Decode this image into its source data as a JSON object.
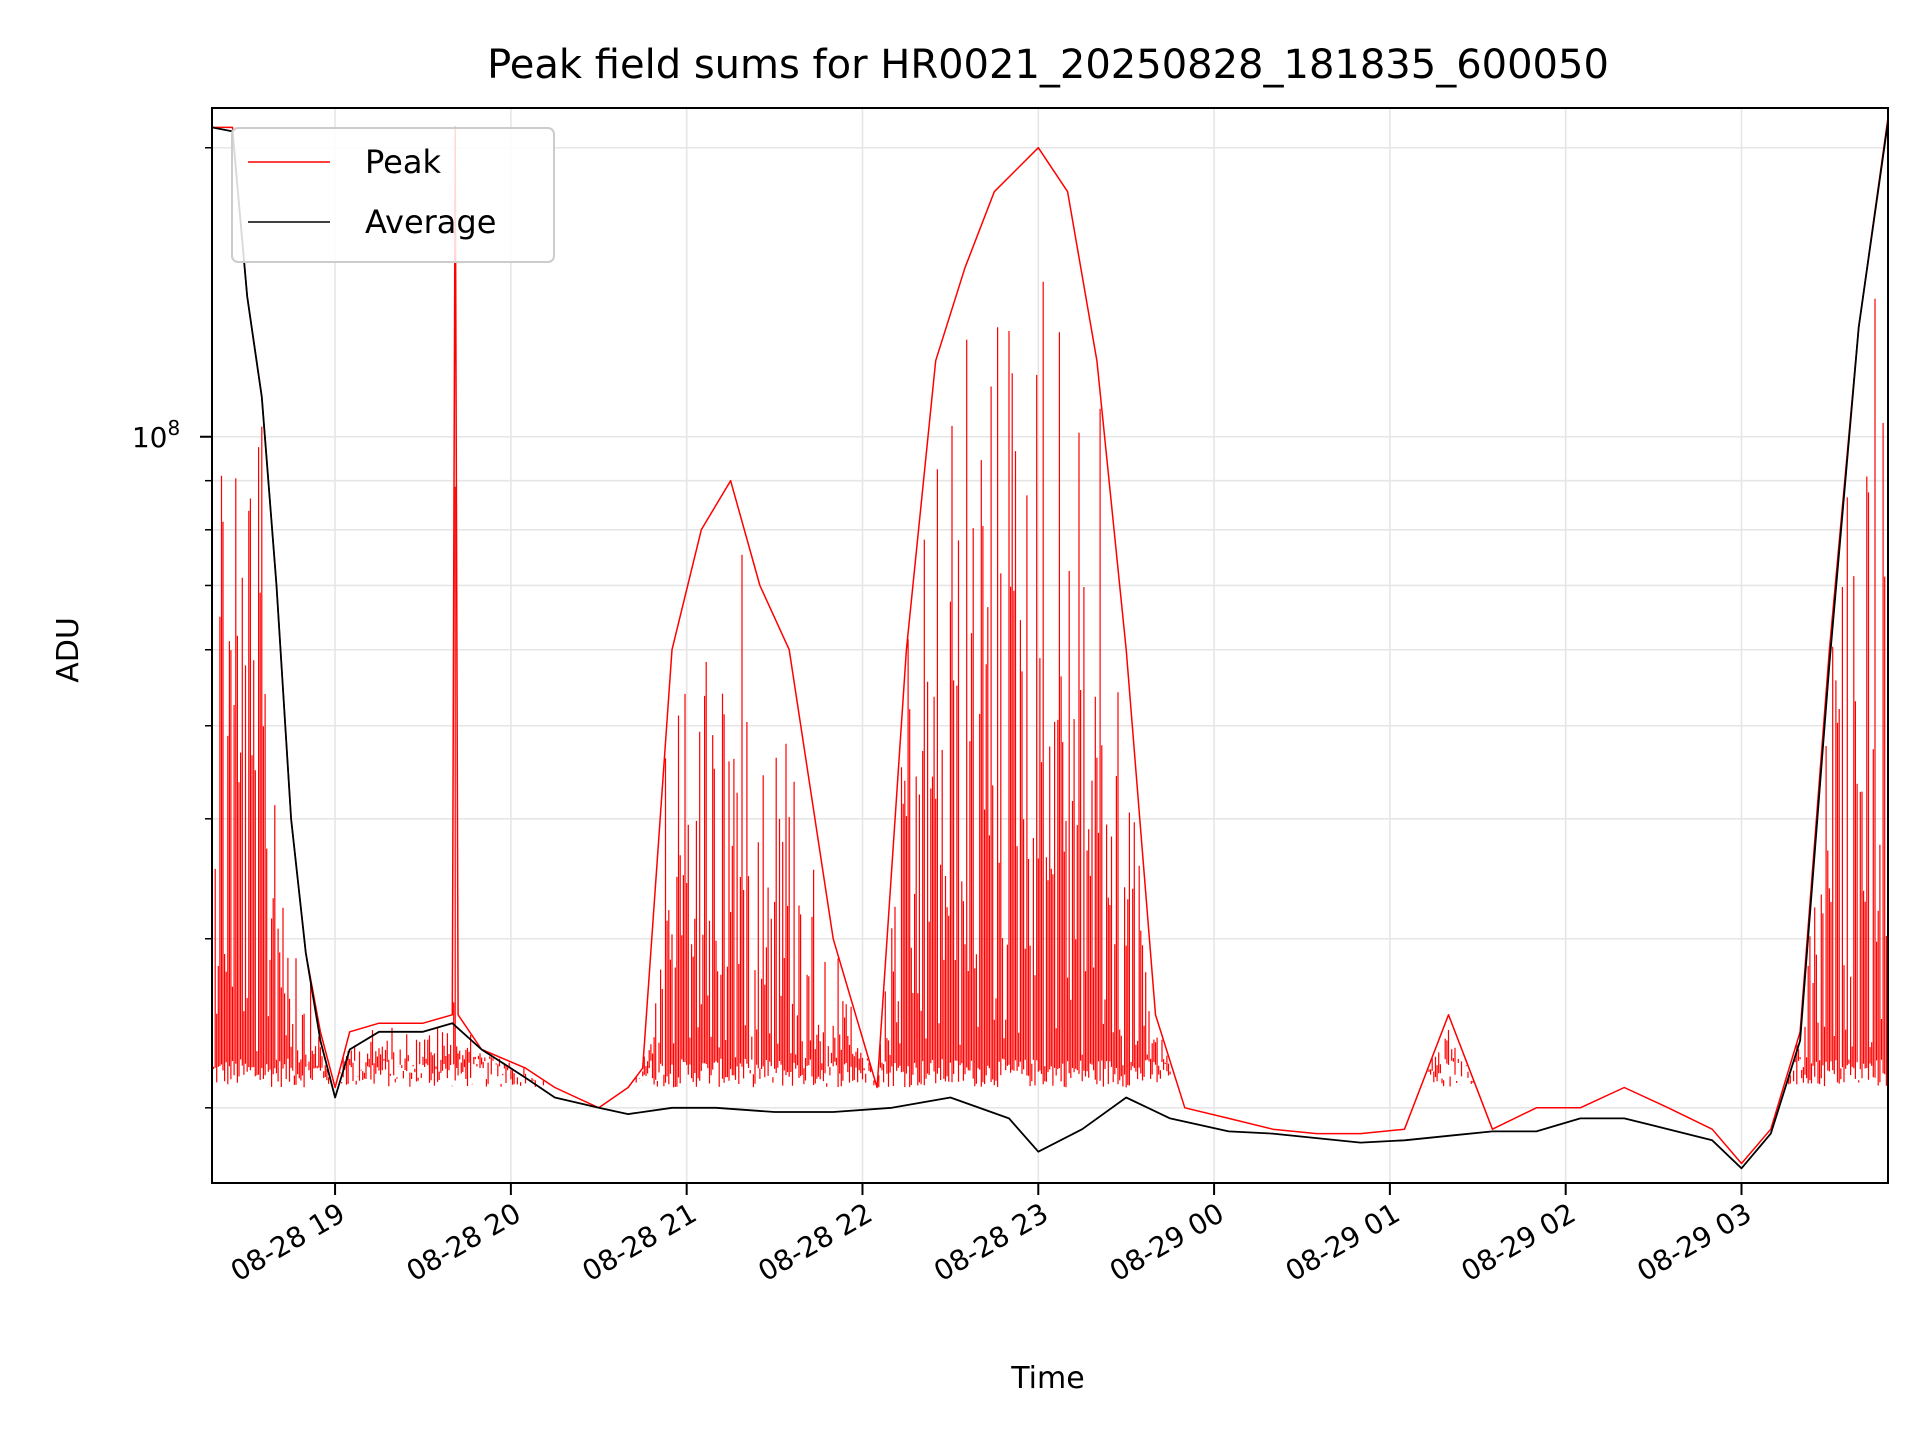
{
  "chart_data": {
    "type": "line",
    "title": "Peak field sums for HR0021_20250828_181835_600050",
    "xlabel": "Time",
    "ylabel": "ADU",
    "y_scale": "log",
    "ylim": [
      16700000,
      220000000
    ],
    "y_major_tick": {
      "value": 100000000,
      "label_base": "10",
      "label_exp": "8"
    },
    "x_range_hours": [
      "2025-08-28 18:18",
      "2025-08-29 03:50"
    ],
    "x_ticks": [
      {
        "value": "2025-08-28 19:00",
        "label": "08-28 19"
      },
      {
        "value": "2025-08-28 20:00",
        "label": "08-28 20"
      },
      {
        "value": "2025-08-28 21:00",
        "label": "08-28 21"
      },
      {
        "value": "2025-08-28 22:00",
        "label": "08-28 22"
      },
      {
        "value": "2025-08-28 23:00",
        "label": "08-28 23"
      },
      {
        "value": "2025-08-29 00:00",
        "label": "08-29 00"
      },
      {
        "value": "2025-08-29 01:00",
        "label": "08-29 01"
      },
      {
        "value": "2025-08-29 02:00",
        "label": "08-29 02"
      },
      {
        "value": "2025-08-29 03:00",
        "label": "08-29 03"
      }
    ],
    "grid": true,
    "legend_position": "top-left",
    "series": [
      {
        "name": "Peak",
        "color": "#ff0000",
        "x": [
          "2025-08-28 18:18",
          "2025-08-28 18:25",
          "2025-08-28 18:30",
          "2025-08-28 18:35",
          "2025-08-28 18:40",
          "2025-08-28 18:45",
          "2025-08-28 18:50",
          "2025-08-28 18:55",
          "2025-08-28 19:00",
          "2025-08-28 19:05",
          "2025-08-28 19:15",
          "2025-08-28 19:30",
          "2025-08-28 19:40",
          "2025-08-28 19:41",
          "2025-08-28 19:42",
          "2025-08-28 19:50",
          "2025-08-28 20:05",
          "2025-08-28 20:15",
          "2025-08-28 20:30",
          "2025-08-28 20:40",
          "2025-08-28 20:45",
          "2025-08-28 20:55",
          "2025-08-28 21:05",
          "2025-08-28 21:15",
          "2025-08-28 21:25",
          "2025-08-28 21:35",
          "2025-08-28 21:50",
          "2025-08-28 22:05",
          "2025-08-28 22:15",
          "2025-08-28 22:25",
          "2025-08-28 22:35",
          "2025-08-28 22:45",
          "2025-08-28 23:00",
          "2025-08-28 23:10",
          "2025-08-28 23:20",
          "2025-08-28 23:30",
          "2025-08-28 23:40",
          "2025-08-28 23:50",
          "2025-08-29 00:05",
          "2025-08-29 00:20",
          "2025-08-29 00:35",
          "2025-08-29 00:50",
          "2025-08-29 01:05",
          "2025-08-29 01:20",
          "2025-08-29 01:35",
          "2025-08-29 01:50",
          "2025-08-29 02:05",
          "2025-08-29 02:20",
          "2025-08-29 02:35",
          "2025-08-29 02:50",
          "2025-08-29 03:00",
          "2025-08-29 03:10",
          "2025-08-29 03:20",
          "2025-08-29 03:30",
          "2025-08-29 03:40",
          "2025-08-29 03:50"
        ],
        "values": [
          210000000,
          210000000,
          140000000,
          110000000,
          70000000,
          40000000,
          29000000,
          24000000,
          21000000,
          24000000,
          24500000,
          24500000,
          25000000,
          210000000,
          25000000,
          23000000,
          22000000,
          21000000,
          20000000,
          21000000,
          22000000,
          60000000,
          80000000,
          90000000,
          70000000,
          60000000,
          30000000,
          21000000,
          60000000,
          120000000,
          150000000,
          180000000,
          200000000,
          180000000,
          120000000,
          60000000,
          25000000,
          20000000,
          19500000,
          19000000,
          18800000,
          18800000,
          19000000,
          25000000,
          19000000,
          20000000,
          20000000,
          21000000,
          20000000,
          19000000,
          17500000,
          19000000,
          24000000,
          60000000,
          130000000,
          215000000
        ]
      },
      {
        "name": "Average",
        "color": "#000000",
        "x": [
          "2025-08-28 18:18",
          "2025-08-28 18:25",
          "2025-08-28 18:30",
          "2025-08-28 18:35",
          "2025-08-28 18:40",
          "2025-08-28 18:45",
          "2025-08-28 18:50",
          "2025-08-28 18:55",
          "2025-08-28 19:00",
          "2025-08-28 19:05",
          "2025-08-28 19:15",
          "2025-08-28 19:30",
          "2025-08-28 19:40",
          "2025-08-28 19:50",
          "2025-08-28 20:05",
          "2025-08-28 20:15",
          "2025-08-28 20:30",
          "2025-08-28 20:40",
          "2025-08-28 20:55",
          "2025-08-28 21:10",
          "2025-08-28 21:30",
          "2025-08-28 21:50",
          "2025-08-28 22:10",
          "2025-08-28 22:30",
          "2025-08-28 22:50",
          "2025-08-28 23:00",
          "2025-08-28 23:15",
          "2025-08-28 23:30",
          "2025-08-28 23:45",
          "2025-08-29 00:05",
          "2025-08-29 00:20",
          "2025-08-29 00:35",
          "2025-08-29 00:50",
          "2025-08-29 01:05",
          "2025-08-29 01:20",
          "2025-08-29 01:35",
          "2025-08-29 01:50",
          "2025-08-29 02:05",
          "2025-08-29 02:20",
          "2025-08-29 02:35",
          "2025-08-29 02:50",
          "2025-08-29 03:00",
          "2025-08-29 03:10",
          "2025-08-29 03:20",
          "2025-08-29 03:30",
          "2025-08-29 03:40",
          "2025-08-29 03:50"
        ],
        "values": [
          210000000,
          208000000,
          140000000,
          110000000,
          70000000,
          40000000,
          29000000,
          23500000,
          20500000,
          23000000,
          24000000,
          24000000,
          24500000,
          23000000,
          21500000,
          20500000,
          20000000,
          19700000,
          20000000,
          20000000,
          19800000,
          19800000,
          20000000,
          20500000,
          19500000,
          18000000,
          19000000,
          20500000,
          19500000,
          18900000,
          18800000,
          18600000,
          18400000,
          18500000,
          18700000,
          18900000,
          18900000,
          19500000,
          19500000,
          19000000,
          18500000,
          17300000,
          18800000,
          23500000,
          58000000,
          130000000,
          213000000
        ]
      }
    ]
  }
}
